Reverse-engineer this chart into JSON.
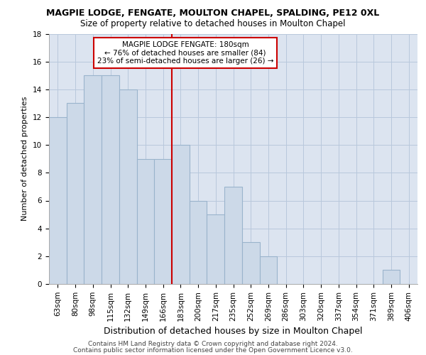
{
  "title": "MAGPIE LODGE, FENGATE, MOULTON CHAPEL, SPALDING, PE12 0XL",
  "subtitle": "Size of property relative to detached houses in Moulton Chapel",
  "xlabel": "Distribution of detached houses by size in Moulton Chapel",
  "ylabel": "Number of detached properties",
  "categories": [
    "63sqm",
    "80sqm",
    "98sqm",
    "115sqm",
    "132sqm",
    "149sqm",
    "166sqm",
    "183sqm",
    "200sqm",
    "217sqm",
    "235sqm",
    "252sqm",
    "269sqm",
    "286sqm",
    "303sqm",
    "320sqm",
    "337sqm",
    "354sqm",
    "371sqm",
    "389sqm",
    "406sqm"
  ],
  "values": [
    12,
    13,
    15,
    15,
    14,
    9,
    9,
    10,
    6,
    5,
    7,
    3,
    2,
    0,
    0,
    0,
    0,
    0,
    0,
    1,
    0
  ],
  "bar_color": "#ccd9e8",
  "bar_edgecolor": "#9ab4cc",
  "vline_color": "#cc0000",
  "vline_x": 7.0,
  "annotation_lines": [
    "MAGPIE LODGE FENGATE: 180sqm",
    "← 76% of detached houses are smaller (84)",
    "23% of semi-detached houses are larger (26) →"
  ],
  "annotation_box_edgecolor": "#cc0000",
  "ylim": [
    0,
    18
  ],
  "yticks": [
    0,
    2,
    4,
    6,
    8,
    10,
    12,
    14,
    16,
    18
  ],
  "grid_color": "#b8c8dc",
  "plot_bg_color": "#dce4f0",
  "fig_bg_color": "#ffffff",
  "title_fontsize": 9,
  "subtitle_fontsize": 8.5,
  "ylabel_fontsize": 8,
  "xlabel_fontsize": 9,
  "tick_fontsize": 7.5,
  "annot_fontsize": 7.5,
  "footer_line1": "Contains HM Land Registry data © Crown copyright and database right 2024.",
  "footer_line2": "Contains public sector information licensed under the Open Government Licence v3.0.",
  "footer_fontsize": 6.5
}
